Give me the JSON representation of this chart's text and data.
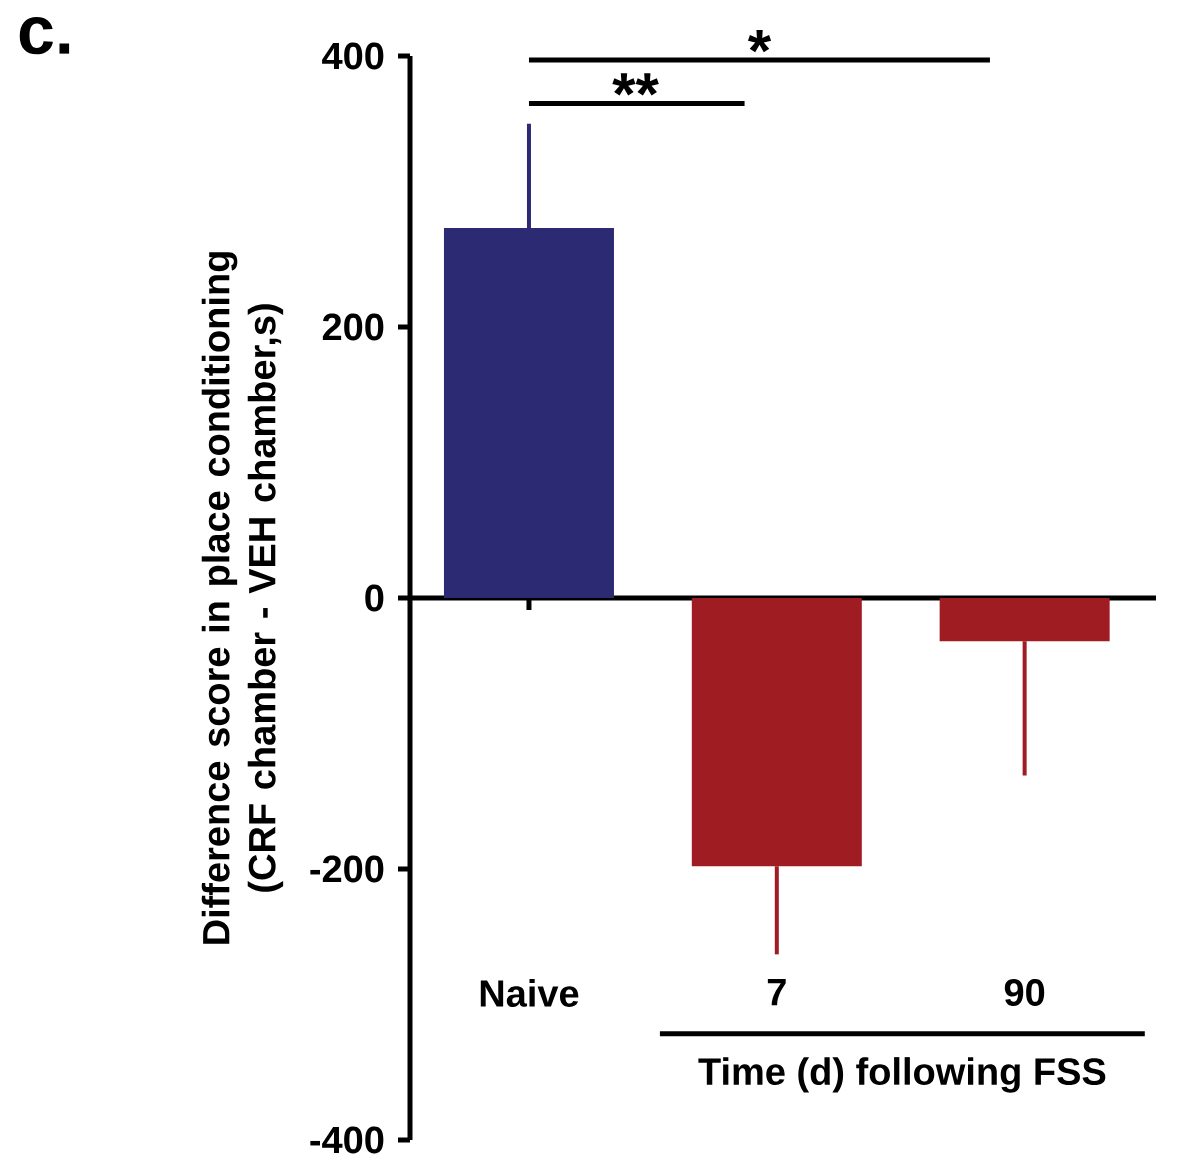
{
  "chart_data": {
    "type": "bar",
    "ylabel": "Difference score in place conditioning (CRF chamber - VEH chamber,s)",
    "xlabel": "Time (d) following FSS",
    "categories": [
      "Naive",
      "7",
      "90"
    ],
    "values": [
      273,
      -198,
      -32
    ],
    "colors": [
      "#2b2a72",
      "#9e1c22",
      "#9e1c22"
    ],
    "errors": [
      [
        273,
        350
      ],
      [
        -263,
        -198
      ],
      [
        -131,
        -32
      ]
    ],
    "ylim": [
      -400,
      400
    ],
    "yticks": [
      -400,
      -200,
      0,
      200,
      400
    ],
    "annotations": [
      "c.",
      "**",
      "*"
    ]
  }
}
